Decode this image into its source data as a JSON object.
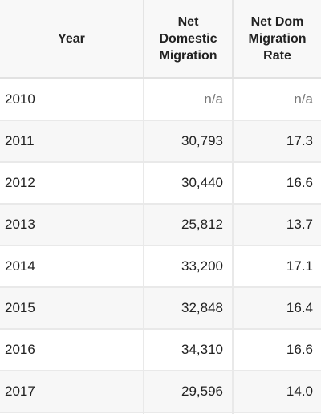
{
  "table": {
    "headers": [
      "Year",
      "Net Domestic Migration",
      "Net Dom Migration Rate"
    ],
    "rows": [
      [
        "2010",
        "n/a",
        "n/a"
      ],
      [
        "2011",
        "30,793",
        "17.3"
      ],
      [
        "2012",
        "30,440",
        "16.6"
      ],
      [
        "2013",
        "25,812",
        "13.7"
      ],
      [
        "2014",
        "33,200",
        "17.1"
      ],
      [
        "2015",
        "32,848",
        "16.4"
      ],
      [
        "2016",
        "34,310",
        "16.6"
      ],
      [
        "2017",
        "29,596",
        "14.0"
      ]
    ]
  }
}
